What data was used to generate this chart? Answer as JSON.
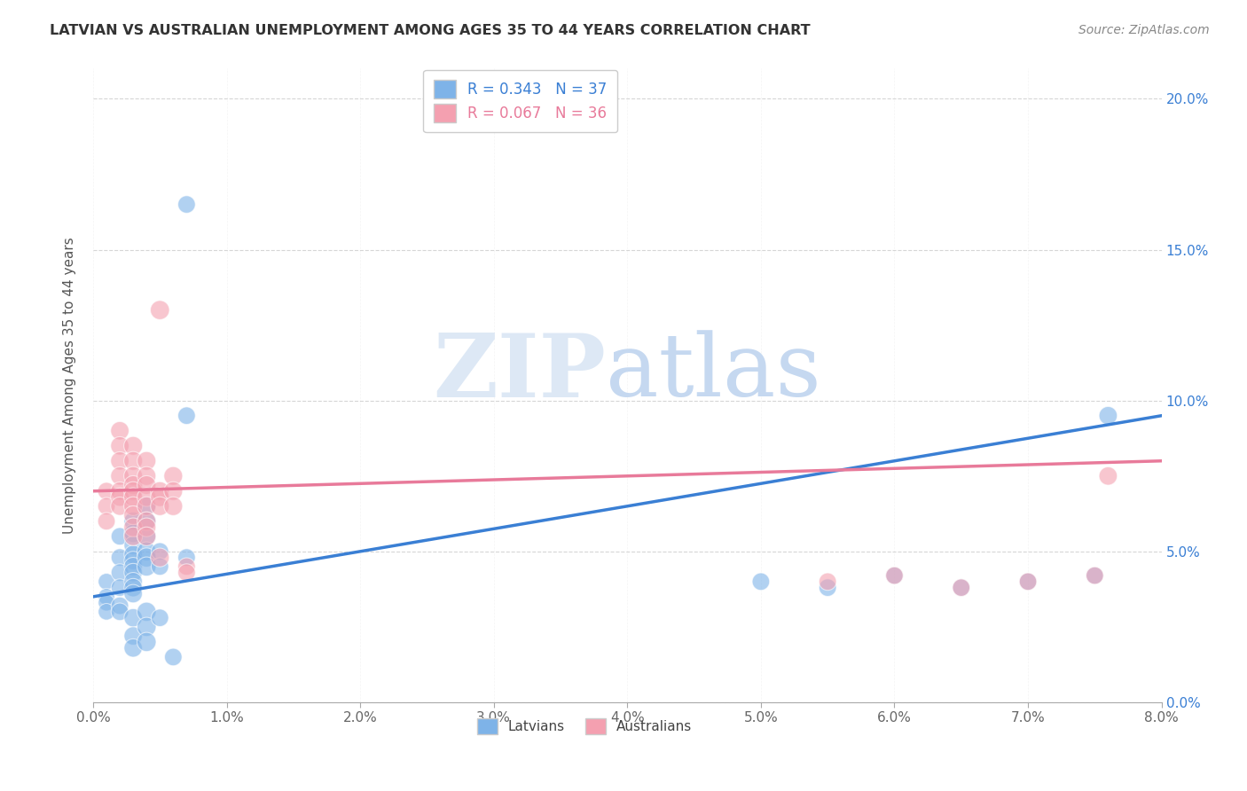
{
  "title": "LATVIAN VS AUSTRALIAN UNEMPLOYMENT AMONG AGES 35 TO 44 YEARS CORRELATION CHART",
  "source": "Source: ZipAtlas.com",
  "ylabel": "Unemployment Among Ages 35 to 44 years",
  "xlabel_latvians": "Latvians",
  "xlabel_australians": "Australians",
  "xlim": [
    0.0,
    0.08
  ],
  "ylim": [
    0.0,
    0.21
  ],
  "xticks": [
    0.0,
    0.01,
    0.02,
    0.03,
    0.04,
    0.05,
    0.06,
    0.07,
    0.08
  ],
  "yticks": [
    0.0,
    0.05,
    0.1,
    0.15,
    0.2
  ],
  "latvian_R": 0.343,
  "latvian_N": 37,
  "australian_R": 0.067,
  "australian_N": 36,
  "latvian_color": "#7EB3E8",
  "australian_color": "#F4A0B0",
  "latvian_line_color": "#3A7FD4",
  "australian_line_color": "#E87A9A",
  "background_color": "#ffffff",
  "latvian_points": [
    [
      0.001,
      0.04
    ],
    [
      0.001,
      0.035
    ],
    [
      0.001,
      0.033
    ],
    [
      0.001,
      0.03
    ],
    [
      0.002,
      0.055
    ],
    [
      0.002,
      0.048
    ],
    [
      0.002,
      0.043
    ],
    [
      0.002,
      0.038
    ],
    [
      0.002,
      0.032
    ],
    [
      0.002,
      0.03
    ],
    [
      0.003,
      0.06
    ],
    [
      0.003,
      0.056
    ],
    [
      0.003,
      0.052
    ],
    [
      0.003,
      0.049
    ],
    [
      0.003,
      0.047
    ],
    [
      0.003,
      0.045
    ],
    [
      0.003,
      0.043
    ],
    [
      0.003,
      0.04
    ],
    [
      0.003,
      0.038
    ],
    [
      0.003,
      0.036
    ],
    [
      0.003,
      0.028
    ],
    [
      0.003,
      0.022
    ],
    [
      0.003,
      0.018
    ],
    [
      0.004,
      0.065
    ],
    [
      0.004,
      0.06
    ],
    [
      0.004,
      0.055
    ],
    [
      0.004,
      0.05
    ],
    [
      0.004,
      0.048
    ],
    [
      0.004,
      0.045
    ],
    [
      0.004,
      0.03
    ],
    [
      0.004,
      0.025
    ],
    [
      0.004,
      0.02
    ],
    [
      0.005,
      0.05
    ],
    [
      0.005,
      0.045
    ],
    [
      0.005,
      0.028
    ],
    [
      0.006,
      0.015
    ],
    [
      0.007,
      0.165
    ],
    [
      0.007,
      0.095
    ],
    [
      0.007,
      0.048
    ],
    [
      0.05,
      0.04
    ],
    [
      0.055,
      0.038
    ],
    [
      0.06,
      0.042
    ],
    [
      0.065,
      0.038
    ],
    [
      0.07,
      0.04
    ],
    [
      0.075,
      0.042
    ],
    [
      0.076,
      0.095
    ]
  ],
  "latvian_sizes": [
    180,
    180,
    180,
    180,
    200,
    200,
    200,
    200,
    200,
    200,
    220,
    220,
    220,
    220,
    220,
    220,
    220,
    220,
    220,
    220,
    220,
    220,
    220,
    240,
    240,
    240,
    240,
    240,
    240,
    240,
    240,
    240,
    200,
    200,
    200,
    200,
    200,
    200,
    200,
    200,
    200,
    200,
    200,
    200,
    200,
    220
  ],
  "australian_points": [
    [
      0.001,
      0.07
    ],
    [
      0.001,
      0.065
    ],
    [
      0.001,
      0.06
    ],
    [
      0.002,
      0.09
    ],
    [
      0.002,
      0.085
    ],
    [
      0.002,
      0.08
    ],
    [
      0.002,
      0.075
    ],
    [
      0.002,
      0.07
    ],
    [
      0.002,
      0.068
    ],
    [
      0.002,
      0.065
    ],
    [
      0.003,
      0.085
    ],
    [
      0.003,
      0.08
    ],
    [
      0.003,
      0.075
    ],
    [
      0.003,
      0.072
    ],
    [
      0.003,
      0.07
    ],
    [
      0.003,
      0.068
    ],
    [
      0.003,
      0.065
    ],
    [
      0.003,
      0.062
    ],
    [
      0.003,
      0.058
    ],
    [
      0.003,
      0.055
    ],
    [
      0.004,
      0.08
    ],
    [
      0.004,
      0.075
    ],
    [
      0.004,
      0.072
    ],
    [
      0.004,
      0.068
    ],
    [
      0.004,
      0.065
    ],
    [
      0.004,
      0.06
    ],
    [
      0.004,
      0.058
    ],
    [
      0.004,
      0.055
    ],
    [
      0.005,
      0.13
    ],
    [
      0.005,
      0.07
    ],
    [
      0.005,
      0.068
    ],
    [
      0.005,
      0.065
    ],
    [
      0.005,
      0.048
    ],
    [
      0.006,
      0.075
    ],
    [
      0.006,
      0.07
    ],
    [
      0.006,
      0.065
    ],
    [
      0.007,
      0.045
    ],
    [
      0.007,
      0.043
    ],
    [
      0.055,
      0.04
    ],
    [
      0.06,
      0.042
    ],
    [
      0.065,
      0.038
    ],
    [
      0.07,
      0.04
    ],
    [
      0.075,
      0.042
    ],
    [
      0.076,
      0.075
    ]
  ],
  "australian_sizes": [
    200,
    200,
    200,
    220,
    220,
    220,
    220,
    220,
    220,
    220,
    230,
    230,
    230,
    230,
    230,
    230,
    230,
    230,
    230,
    230,
    230,
    230,
    230,
    230,
    230,
    230,
    230,
    230,
    240,
    230,
    230,
    230,
    230,
    230,
    230,
    230,
    200,
    200,
    200,
    200,
    200,
    200,
    200,
    220
  ]
}
